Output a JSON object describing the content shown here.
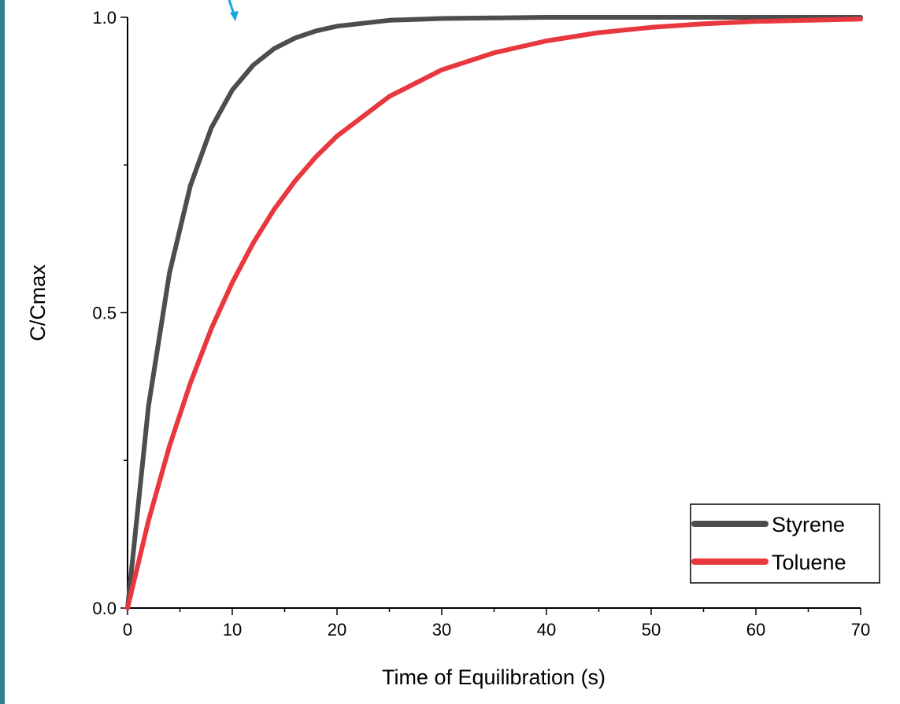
{
  "chart_data": {
    "type": "line",
    "xlabel": "Time of Equilibration (s)",
    "ylabel": "C/Cmax",
    "xlim": [
      0,
      70
    ],
    "ylim": [
      0,
      1.0
    ],
    "x_ticks": [
      "0",
      "10",
      "20",
      "30",
      "40",
      "50",
      "60",
      "70"
    ],
    "y_ticks": [
      "0.0",
      "0.5",
      "1.0"
    ],
    "grid": false,
    "legend_position": "bottom-right",
    "x": [
      0,
      2,
      4,
      6,
      8,
      10,
      12,
      14,
      16,
      18,
      20,
      25,
      30,
      35,
      40,
      45,
      50,
      55,
      60,
      65,
      70
    ],
    "series": [
      {
        "name": "Styrene",
        "color": "#4d4d4d",
        "values": [
          0.0,
          0.342,
          0.567,
          0.715,
          0.813,
          0.877,
          0.919,
          0.947,
          0.965,
          0.977,
          0.985,
          0.995,
          0.998,
          0.999,
          1.0,
          1.0,
          1.0,
          1.0,
          1.0,
          1.0,
          1.0
        ]
      },
      {
        "name": "Toluene",
        "color": "#e8383d",
        "values": [
          0.0,
          0.148,
          0.274,
          0.381,
          0.473,
          0.551,
          0.618,
          0.675,
          0.723,
          0.764,
          0.799,
          0.866,
          0.911,
          0.94,
          0.96,
          0.974,
          0.983,
          0.989,
          0.993,
          0.995,
          0.997
        ]
      }
    ]
  },
  "annotation": {
    "arrow_color": "#1aa3e0",
    "arrow_icon": "arrow-down-right-icon"
  }
}
